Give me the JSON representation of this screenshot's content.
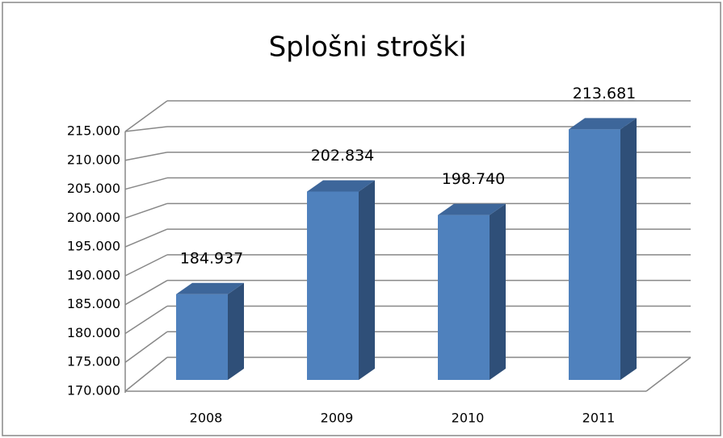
{
  "chart_data": {
    "type": "bar3d",
    "title": "Splošni stroški",
    "categories": [
      "2008",
      "2009",
      "2010",
      "2011"
    ],
    "values": [
      184937,
      202834,
      198740,
      213681
    ],
    "value_labels": [
      "184.937",
      "202.834",
      "198.740",
      "213.681"
    ],
    "color": "#4f81bd",
    "ylim": [
      170000,
      215000
    ],
    "yticks": [
      {
        "value": 170000,
        "label": "170.000"
      },
      {
        "value": 175000,
        "label": "175.000"
      },
      {
        "value": 180000,
        "label": "180.000"
      },
      {
        "value": 185000,
        "label": "185.000"
      },
      {
        "value": 190000,
        "label": "190.000"
      },
      {
        "value": 195000,
        "label": "195.000"
      },
      {
        "value": 200000,
        "label": "200.000"
      },
      {
        "value": 205000,
        "label": "205.000"
      },
      {
        "value": 210000,
        "label": "210.000"
      },
      {
        "value": 215000,
        "label": "215.000"
      }
    ],
    "grid": true
  }
}
